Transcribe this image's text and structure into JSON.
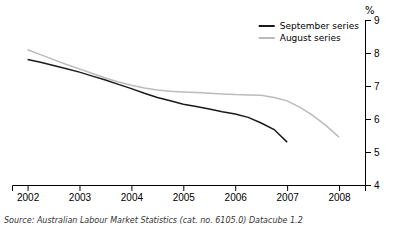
{
  "chart_data": {
    "type": "line",
    "series": [
      {
        "name": "September series",
        "color": "#1a1a1a",
        "x": [
          2002.0,
          2002.25,
          2002.5,
          2002.75,
          2003.0,
          2003.25,
          2003.5,
          2003.75,
          2004.0,
          2004.25,
          2004.5,
          2004.75,
          2005.0,
          2005.25,
          2005.5,
          2005.75,
          2006.0,
          2006.25,
          2006.5,
          2006.75,
          2007.0
        ],
        "values": [
          7.8,
          7.72,
          7.62,
          7.52,
          7.42,
          7.3,
          7.18,
          7.05,
          6.92,
          6.78,
          6.65,
          6.55,
          6.45,
          6.38,
          6.3,
          6.22,
          6.15,
          6.05,
          5.88,
          5.68,
          5.3
        ]
      },
      {
        "name": "August series",
        "color": "#bbbbbb",
        "x": [
          2002.0,
          2002.25,
          2002.5,
          2002.75,
          2003.0,
          2003.25,
          2003.5,
          2003.75,
          2004.0,
          2004.25,
          2004.5,
          2004.75,
          2005.0,
          2005.25,
          2005.5,
          2005.75,
          2006.0,
          2006.25,
          2006.5,
          2006.75,
          2007.0,
          2007.25,
          2007.5,
          2007.75,
          2008.0
        ],
        "values": [
          8.1,
          7.95,
          7.8,
          7.65,
          7.52,
          7.38,
          7.24,
          7.12,
          7.02,
          6.94,
          6.88,
          6.84,
          6.82,
          6.8,
          6.78,
          6.76,
          6.74,
          6.73,
          6.72,
          6.65,
          6.55,
          6.35,
          6.1,
          5.8,
          5.45
        ]
      }
    ],
    "ylabel": "%",
    "xlim": [
      2001.7,
      2008.5
    ],
    "xticks": [
      2002,
      2003,
      2004,
      2005,
      2006,
      2007,
      2008
    ],
    "ylim": [
      4,
      9
    ],
    "yticks": [
      4,
      5,
      6,
      7,
      8,
      9
    ],
    "annotations": [
      "Source: Australian Labour Market Statistics (cat.  no.  6105.0) Datacube 1.2"
    ],
    "legend": "upper right",
    "grid": false
  }
}
